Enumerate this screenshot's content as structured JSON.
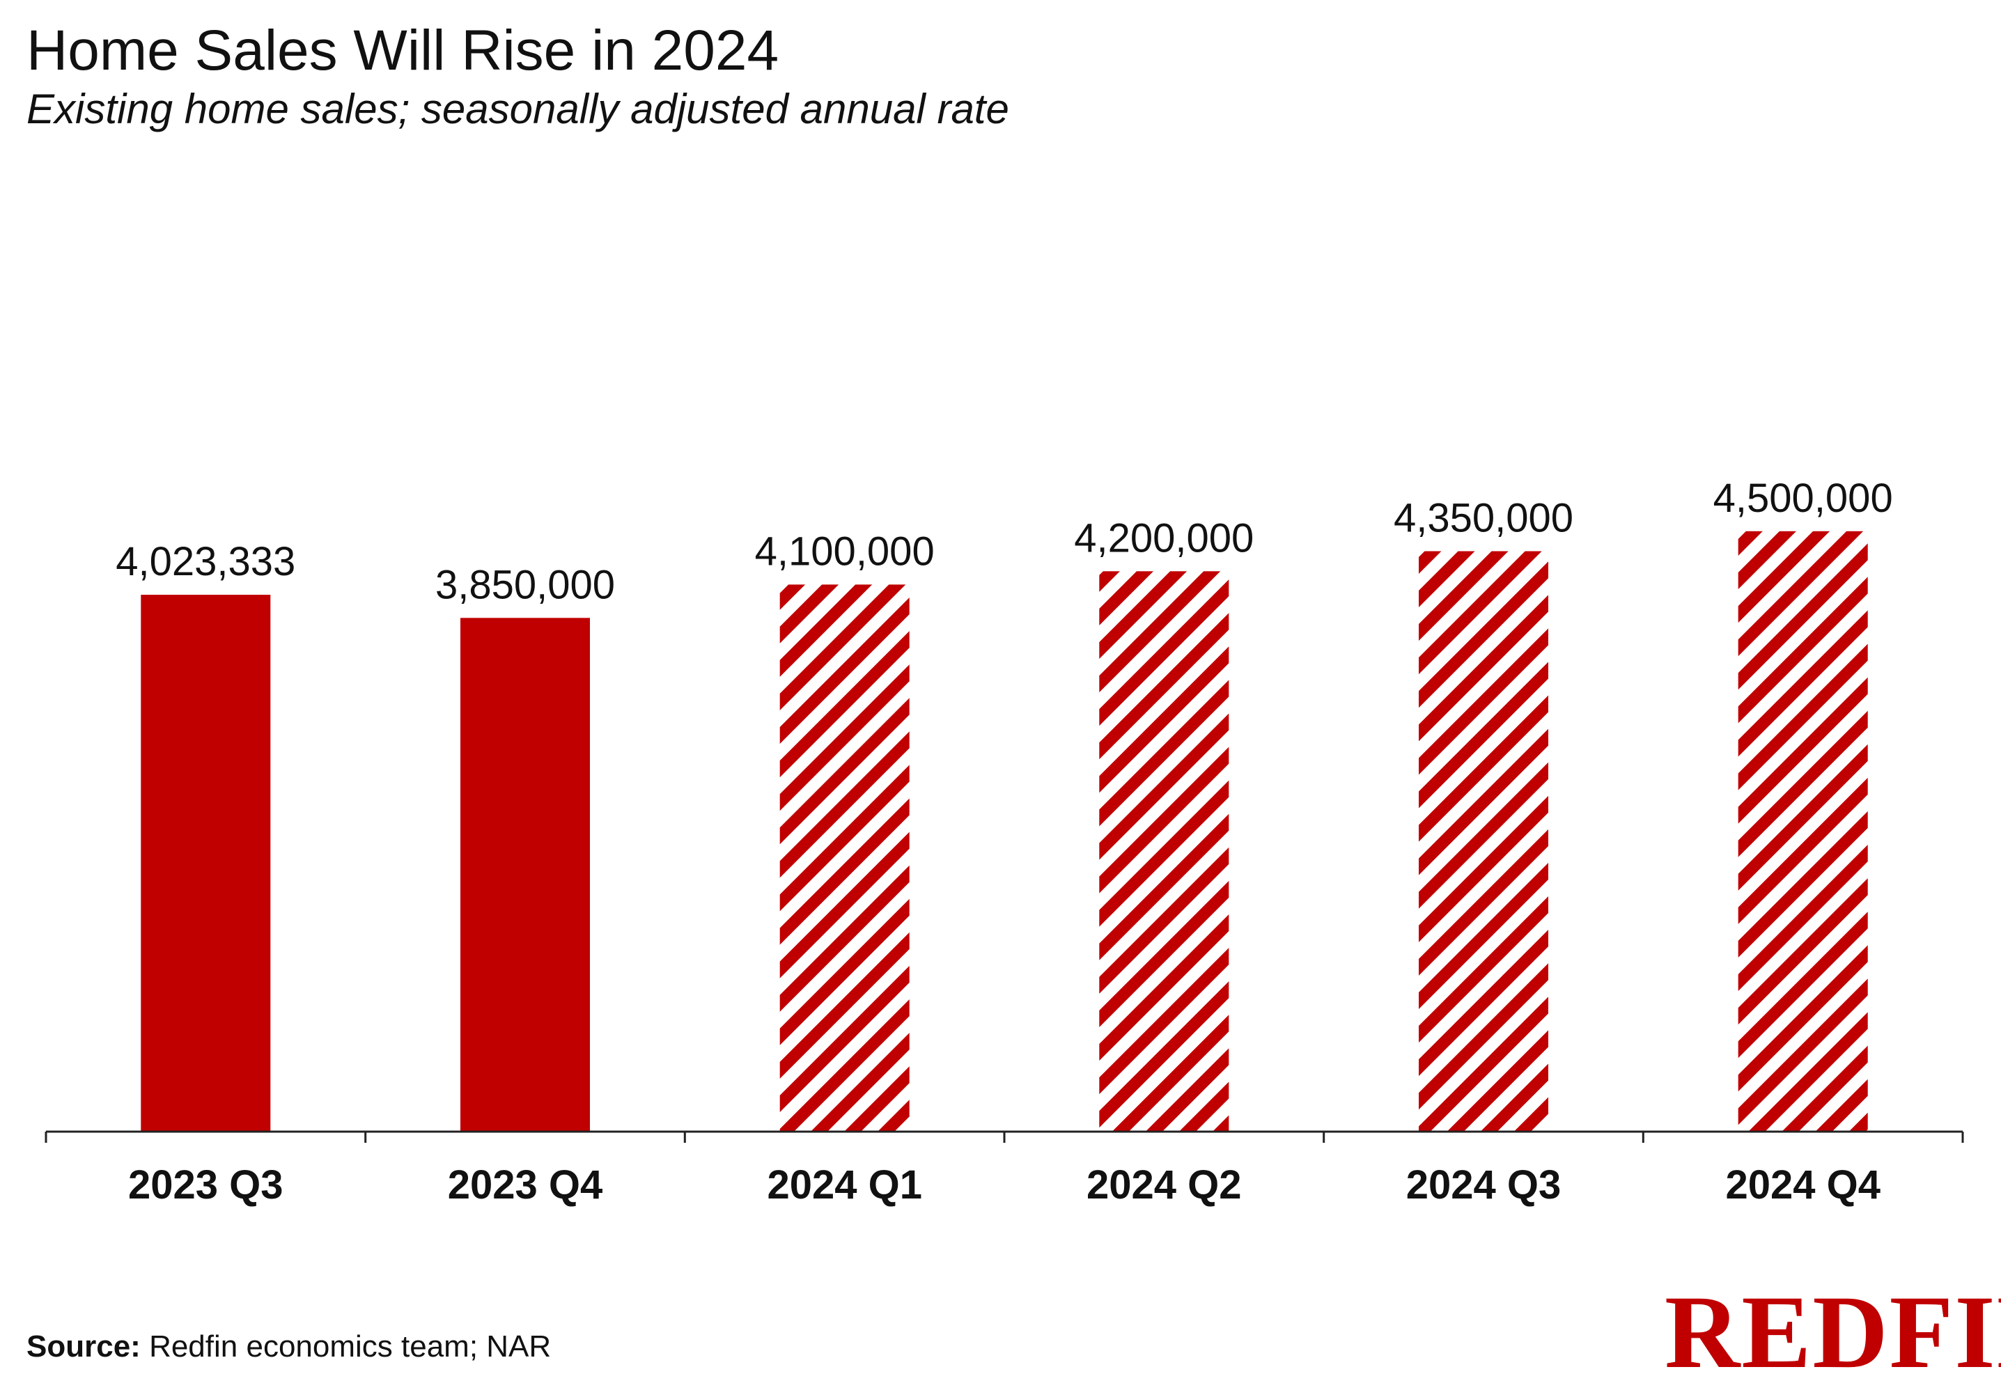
{
  "title": "Home Sales Will Rise in 2024",
  "subtitle": "Existing home sales; seasonally adjusted annual rate",
  "source": {
    "label": "Source:",
    "text": "Redfin economics team; NAR"
  },
  "logo": {
    "text": "REDFIN",
    "color": "#c00000"
  },
  "colors": {
    "bar": "#c00000",
    "axis": "#222222",
    "stripe_bg": "#ffffff"
  },
  "chart_data": {
    "type": "bar",
    "title": "Home Sales Will Rise in 2024",
    "subtitle": "Existing home sales; seasonally adjusted annual rate",
    "xlabel": "",
    "ylabel": "",
    "ylim": [
      0,
      4750000
    ],
    "grid": false,
    "categories": [
      "2023 Q3",
      "2023 Q4",
      "2024 Q1",
      "2024 Q2",
      "2024 Q3",
      "2024 Q4"
    ],
    "values": [
      4023333,
      3850000,
      4100000,
      4200000,
      4350000,
      4500000
    ],
    "value_labels": [
      "4,023,333",
      "3,850,000",
      "4,100,000",
      "4,200,000",
      "4,350,000",
      "4,500,000"
    ],
    "fill": [
      "solid",
      "solid",
      "hatched",
      "hatched",
      "hatched",
      "hatched"
    ]
  }
}
